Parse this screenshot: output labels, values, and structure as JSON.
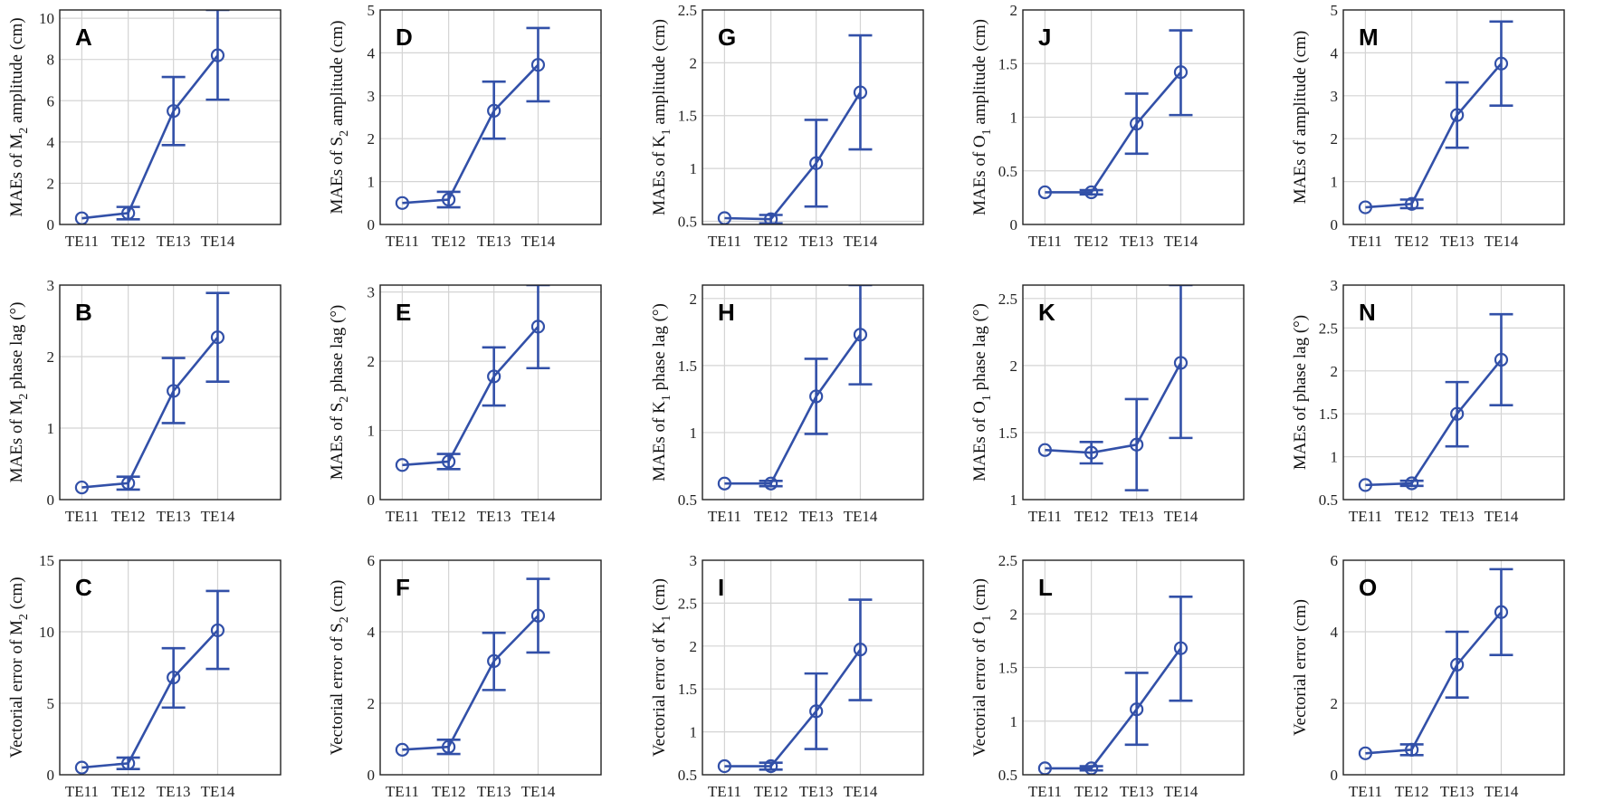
{
  "chart_data": [
    {
      "panel": "A",
      "type": "line",
      "categories": [
        "TE11",
        "TE12",
        "TE13",
        "TE14"
      ],
      "values": [
        0.3,
        0.55,
        5.5,
        8.2
      ],
      "err_low": [
        0.3,
        0.25,
        3.85,
        6.05
      ],
      "err_high": [
        0.3,
        0.85,
        7.15,
        10.4
      ],
      "ylabel_parts": [
        "MAEs of M",
        "2",
        " amplitude (cm)"
      ],
      "ylim": [
        0,
        10.4
      ],
      "yticks": [
        0,
        2,
        4,
        6,
        8,
        10
      ],
      "ytick_labels": [
        "0",
        "2",
        "4",
        "6",
        "8",
        "10"
      ]
    },
    {
      "panel": "B",
      "type": "line",
      "categories": [
        "TE11",
        "TE12",
        "TE13",
        "TE14"
      ],
      "values": [
        0.17,
        0.23,
        1.52,
        2.27
      ],
      "err_low": [
        0.17,
        0.14,
        1.07,
        1.65
      ],
      "err_high": [
        0.17,
        0.32,
        1.98,
        2.89
      ],
      "ylabel_parts": [
        "MAEs of M",
        "2",
        " phase lag (°)"
      ],
      "ylim": [
        0,
        3
      ],
      "yticks": [
        0,
        1,
        2,
        3
      ],
      "ytick_labels": [
        "0",
        "1",
        "2",
        "3"
      ]
    },
    {
      "panel": "C",
      "type": "line",
      "categories": [
        "TE11",
        "TE12",
        "TE13",
        "TE14"
      ],
      "values": [
        0.5,
        0.8,
        6.8,
        10.1
      ],
      "err_low": [
        0.5,
        0.4,
        4.7,
        7.4
      ],
      "err_high": [
        0.5,
        1.2,
        8.85,
        12.85
      ],
      "ylabel_parts": [
        "Vectorial error of M",
        "2",
        " (cm)"
      ],
      "ylim": [
        0,
        15
      ],
      "yticks": [
        0,
        5,
        10,
        15
      ],
      "ytick_labels": [
        "0",
        "5",
        "10",
        "15"
      ]
    },
    {
      "panel": "D",
      "type": "line",
      "categories": [
        "TE11",
        "TE12",
        "TE13",
        "TE14"
      ],
      "values": [
        0.5,
        0.58,
        2.65,
        3.72
      ],
      "err_low": [
        0.5,
        0.4,
        2.0,
        2.87
      ],
      "err_high": [
        0.5,
        0.76,
        3.33,
        4.58
      ],
      "ylabel_parts": [
        "MAEs of S",
        "2",
        " amplitude (cm)"
      ],
      "ylim": [
        0,
        5
      ],
      "yticks": [
        0,
        1,
        2,
        3,
        4,
        5
      ],
      "ytick_labels": [
        "0",
        "1",
        "2",
        "3",
        "4",
        "5"
      ]
    },
    {
      "panel": "E",
      "type": "line",
      "categories": [
        "TE11",
        "TE12",
        "TE13",
        "TE14"
      ],
      "values": [
        0.5,
        0.55,
        1.78,
        2.5
      ],
      "err_low": [
        0.5,
        0.44,
        1.36,
        1.9
      ],
      "err_high": [
        0.5,
        0.66,
        2.2,
        3.1
      ],
      "ylabel_parts": [
        "MAEs of S",
        "2",
        " phase lag (°)"
      ],
      "ylim": [
        0,
        3.1
      ],
      "yticks": [
        0,
        1,
        2,
        3
      ],
      "ytick_labels": [
        "0",
        "1",
        "2",
        "3"
      ]
    },
    {
      "panel": "F",
      "type": "line",
      "categories": [
        "TE11",
        "TE12",
        "TE13",
        "TE14"
      ],
      "values": [
        0.7,
        0.78,
        3.18,
        4.45
      ],
      "err_low": [
        0.7,
        0.58,
        2.37,
        3.42
      ],
      "err_high": [
        0.7,
        0.98,
        3.97,
        5.48
      ],
      "ylabel_parts": [
        "Vectorial error of S",
        "2",
        " (cm)"
      ],
      "ylim": [
        0,
        6
      ],
      "yticks": [
        0,
        2,
        4,
        6
      ],
      "ytick_labels": [
        "0",
        "2",
        "4",
        "6"
      ]
    },
    {
      "panel": "G",
      "type": "line",
      "categories": [
        "TE11",
        "TE12",
        "TE13",
        "TE14"
      ],
      "values": [
        0.53,
        0.52,
        1.05,
        1.72
      ],
      "err_low": [
        0.53,
        0.48,
        0.64,
        1.18
      ],
      "err_high": [
        0.53,
        0.56,
        1.46,
        2.26
      ],
      "ylabel_parts": [
        "MAEs of K",
        "1",
        " amplitude (cm)"
      ],
      "ylim": [
        0.47,
        2.5
      ],
      "yticks": [
        0.5,
        1,
        1.5,
        2,
        2.5
      ],
      "ytick_labels": [
        "0.5",
        "1",
        "1.5",
        "2",
        "2.5"
      ]
    },
    {
      "panel": "H",
      "type": "line",
      "categories": [
        "TE11",
        "TE12",
        "TE13",
        "TE14"
      ],
      "values": [
        0.62,
        0.62,
        1.27,
        1.73
      ],
      "err_low": [
        0.62,
        0.6,
        0.99,
        1.36
      ],
      "err_high": [
        0.62,
        0.64,
        1.55,
        2.1
      ],
      "ylabel_parts": [
        "MAEs of K",
        "1",
        " phase lag (°)"
      ],
      "ylim": [
        0.5,
        2.1
      ],
      "yticks": [
        0.5,
        1,
        1.5,
        2
      ],
      "ytick_labels": [
        "0.5",
        "1",
        "1.5",
        "2"
      ]
    },
    {
      "panel": "I",
      "type": "line",
      "categories": [
        "TE11",
        "TE12",
        "TE13",
        "TE14"
      ],
      "values": [
        0.6,
        0.6,
        1.24,
        1.96
      ],
      "err_low": [
        0.6,
        0.56,
        0.8,
        1.37
      ],
      "err_high": [
        0.6,
        0.64,
        1.68,
        2.54
      ],
      "ylabel_parts": [
        "Vectorial error of K",
        "1",
        " (cm)"
      ],
      "ylim": [
        0.5,
        3
      ],
      "yticks": [
        0.5,
        1,
        1.5,
        2,
        2.5,
        3
      ],
      "ytick_labels": [
        "0.5",
        "1",
        "1.5",
        "2",
        "2.5",
        "3"
      ]
    },
    {
      "panel": "J",
      "type": "line",
      "categories": [
        "TE11",
        "TE12",
        "TE13",
        "TE14"
      ],
      "values": [
        0.3,
        0.3,
        0.94,
        1.42
      ],
      "err_low": [
        0.3,
        0.28,
        0.66,
        1.02
      ],
      "err_high": [
        0.3,
        0.32,
        1.22,
        1.81
      ],
      "ylabel_parts": [
        "MAEs of O",
        "1",
        " amplitude (cm)"
      ],
      "ylim": [
        0,
        2
      ],
      "yticks": [
        0,
        0.5,
        1,
        1.5,
        2
      ],
      "ytick_labels": [
        "0",
        "0.5",
        "1",
        "1.5",
        "2"
      ]
    },
    {
      "panel": "K",
      "type": "line",
      "categories": [
        "TE11",
        "TE12",
        "TE13",
        "TE14"
      ],
      "values": [
        1.37,
        1.35,
        1.41,
        2.02
      ],
      "err_low": [
        1.37,
        1.27,
        1.07,
        1.46
      ],
      "err_high": [
        1.37,
        1.43,
        1.75,
        2.6
      ],
      "ylabel_parts": [
        "MAEs of O",
        "1",
        " phase lag (°)"
      ],
      "ylim": [
        1,
        2.6
      ],
      "yticks": [
        1,
        1.5,
        2,
        2.5
      ],
      "ytick_labels": [
        "1",
        "1.5",
        "2",
        "2.5"
      ]
    },
    {
      "panel": "L",
      "type": "line",
      "categories": [
        "TE11",
        "TE12",
        "TE13",
        "TE14"
      ],
      "values": [
        0.56,
        0.56,
        1.11,
        1.68
      ],
      "err_low": [
        0.56,
        0.54,
        0.78,
        1.19
      ],
      "err_high": [
        0.56,
        0.58,
        1.45,
        2.16
      ],
      "ylabel_parts": [
        "Vectorial error of O",
        "1",
        " (cm)"
      ],
      "ylim": [
        0.5,
        2.5
      ],
      "yticks": [
        0.5,
        1,
        1.5,
        2,
        2.5
      ],
      "ytick_labels": [
        "0.5",
        "1",
        "1.5",
        "2",
        "2.5"
      ]
    },
    {
      "panel": "M",
      "type": "line",
      "categories": [
        "TE11",
        "TE12",
        "TE13",
        "TE14"
      ],
      "values": [
        0.4,
        0.48,
        2.55,
        3.75
      ],
      "err_low": [
        0.4,
        0.38,
        1.79,
        2.77
      ],
      "err_high": [
        0.4,
        0.58,
        3.31,
        4.73
      ],
      "ylabel_parts": [
        "MAEs of amplitude (cm)",
        "",
        ""
      ],
      "ylim": [
        0,
        5
      ],
      "yticks": [
        0,
        1,
        2,
        3,
        4,
        5
      ],
      "ytick_labels": [
        "0",
        "1",
        "2",
        "3",
        "4",
        "5"
      ]
    },
    {
      "panel": "N",
      "type": "line",
      "categories": [
        "TE11",
        "TE12",
        "TE13",
        "TE14"
      ],
      "values": [
        0.67,
        0.69,
        1.5,
        2.13
      ],
      "err_low": [
        0.67,
        0.66,
        1.12,
        1.6
      ],
      "err_high": [
        0.67,
        0.72,
        1.87,
        2.66
      ],
      "ylabel_parts": [
        "MAEs of phase lag (°)",
        "",
        ""
      ],
      "ylim": [
        0.5,
        3
      ],
      "yticks": [
        0.5,
        1,
        1.5,
        2,
        2.5,
        3
      ],
      "ytick_labels": [
        "0.5",
        "1",
        "1.5",
        "2",
        "2.5",
        "3"
      ]
    },
    {
      "panel": "O",
      "type": "line",
      "categories": [
        "TE11",
        "TE12",
        "TE13",
        "TE14"
      ],
      "values": [
        0.6,
        0.7,
        3.08,
        4.55
      ],
      "err_low": [
        0.6,
        0.55,
        2.16,
        3.35
      ],
      "err_high": [
        0.6,
        0.85,
        4.0,
        5.75
      ],
      "ylabel_parts": [
        "Vectorial error (cm)",
        "",
        ""
      ],
      "ylim": [
        0,
        6
      ],
      "yticks": [
        0,
        2,
        4,
        6
      ],
      "ytick_labels": [
        "0",
        "2",
        "4",
        "6"
      ]
    }
  ],
  "style": {
    "series_color": "#3250a8",
    "grid_color": "#d4d4d4"
  }
}
